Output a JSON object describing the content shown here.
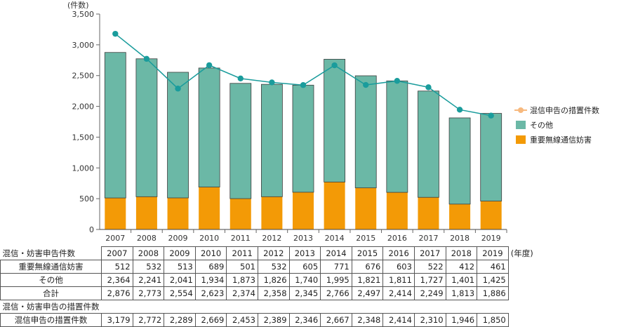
{
  "chart_data": {
    "type": "bar",
    "y_unit_label": "(件数)",
    "x_unit_label": "(年度)",
    "categories": [
      "2007",
      "2008",
      "2009",
      "2010",
      "2011",
      "2012",
      "2013",
      "2014",
      "2015",
      "2016",
      "2017",
      "2018",
      "2019"
    ],
    "ylim": [
      0,
      3500
    ],
    "yticks": [
      "0",
      "500",
      "1,000",
      "1,500",
      "2,000",
      "2,500",
      "3,000",
      "3,500"
    ],
    "stacked": true,
    "series": [
      {
        "name": "重要無線通信妨害",
        "kind": "bar",
        "color": "#f39a06",
        "values": [
          512,
          532,
          513,
          689,
          501,
          532,
          605,
          771,
          676,
          603,
          522,
          412,
          461
        ]
      },
      {
        "name": "その他",
        "kind": "bar",
        "color": "#6bb8a6",
        "values": [
          2364,
          2241,
          2041,
          1934,
          1873,
          1826,
          1740,
          1995,
          1821,
          1811,
          1727,
          1401,
          1425
        ]
      },
      {
        "name": "混信申告の措置件数",
        "kind": "line",
        "color": "#1a9c9c",
        "legend_color": "#f7b97e",
        "values": [
          3179,
          2772,
          2289,
          2669,
          2453,
          2389,
          2346,
          2667,
          2348,
          2414,
          2310,
          1946,
          1850
        ]
      }
    ],
    "legend": [
      "混信申告の措置件数",
      "その他",
      "重要無線通信妨害"
    ],
    "legend_position": "right",
    "grid": false
  },
  "table": {
    "group1_header": "混信・妨害申告件数",
    "group2_header": "混信・妨害申告の措置件数",
    "unit": "(年度)",
    "years": [
      "2007",
      "2008",
      "2009",
      "2010",
      "2011",
      "2012",
      "2013",
      "2014",
      "2015",
      "2016",
      "2017",
      "2018",
      "2019"
    ],
    "rows": [
      {
        "label": "重要無線通信妨害",
        "values": [
          "512",
          "532",
          "513",
          "689",
          "501",
          "532",
          "605",
          "771",
          "676",
          "603",
          "522",
          "412",
          "461"
        ]
      },
      {
        "label": "その他",
        "values": [
          "2,364",
          "2,241",
          "2,041",
          "1,934",
          "1,873",
          "1,826",
          "1,740",
          "1,995",
          "1,821",
          "1,811",
          "1,727",
          "1,401",
          "1,425"
        ]
      },
      {
        "label": "合計",
        "values": [
          "2,876",
          "2,773",
          "2,554",
          "2,623",
          "2,374",
          "2,358",
          "2,345",
          "2,766",
          "2,497",
          "2,414",
          "2,249",
          "1,813",
          "1,886"
        ]
      }
    ],
    "measures_row": {
      "label": "混信申告の措置件数",
      "values": [
        "3,179",
        "2,772",
        "2,289",
        "2,669",
        "2,453",
        "2,389",
        "2,346",
        "2,667",
        "2,348",
        "2,414",
        "2,310",
        "1,946",
        "1,850"
      ]
    }
  }
}
